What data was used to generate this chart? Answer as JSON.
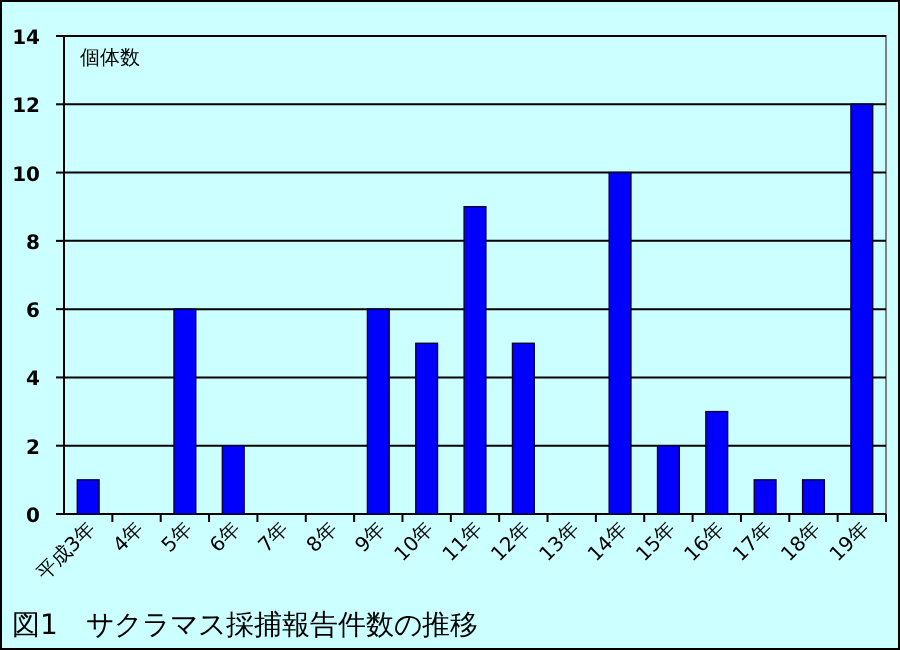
{
  "chart_data": {
    "type": "bar",
    "title": "図1　サクラマス採捕報告件数の推移",
    "ylabel": "個体数",
    "categories": [
      "平成3年",
      "4年",
      "5年",
      "6年",
      "7年",
      "8年",
      "9年",
      "10年",
      "11年",
      "12年",
      "13年",
      "14年",
      "15年",
      "16年",
      "17年",
      "18年",
      "19年"
    ],
    "values": [
      1,
      0,
      6,
      2,
      0,
      0,
      6,
      5,
      9,
      5,
      0,
      10,
      2,
      3,
      1,
      1,
      12
    ],
    "color": "#0000ff",
    "ylim": [
      0,
      14
    ],
    "yticks": [
      0,
      2,
      4,
      6,
      8,
      10,
      12,
      14
    ],
    "grid": "y"
  }
}
